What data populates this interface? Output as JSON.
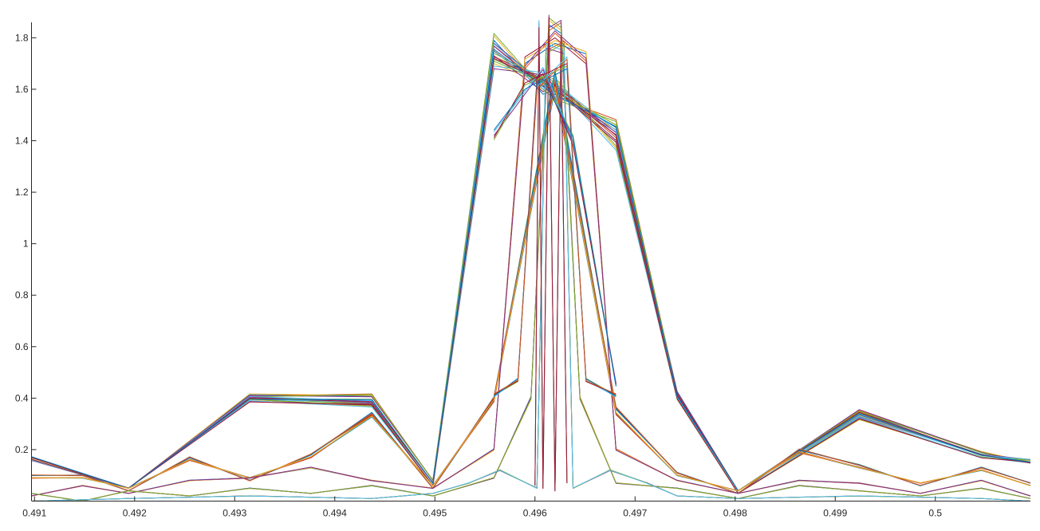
{
  "chart_data": {
    "type": "line",
    "title": "",
    "xlabel": "",
    "ylabel": "",
    "xlim": [
      0.49097,
      0.50095
    ],
    "ylim": [
      0,
      1.86
    ],
    "grid": false,
    "legend": "none",
    "x_ticks": [
      0.491,
      0.492,
      0.493,
      0.494,
      0.495,
      0.496,
      0.497,
      0.498,
      0.499,
      0.5
    ],
    "x_tick_labels": [
      "0.491",
      "0.492",
      "0.493",
      "0.494",
      "0.495",
      "0.496",
      "0.497",
      "0.498",
      "0.499",
      "0.5"
    ],
    "y_ticks": [
      0.2,
      0.4,
      0.6,
      0.8,
      1.0,
      1.2,
      1.4,
      1.6,
      1.8
    ],
    "y_tick_labels": [
      "0.2",
      "0.4",
      "0.6",
      "0.8",
      "1",
      "1.2",
      "1.4",
      "1.6",
      "1.8"
    ],
    "series_colors": [
      "#0072BD",
      "#D95319",
      "#EDB120",
      "#7E2F8E",
      "#77AC30",
      "#4DBEEE",
      "#A2142F"
    ],
    "series": [
      {
        "x": [
          0.49097,
          0.49194,
          0.49315,
          0.49437,
          0.49498,
          0.49559,
          0.49608,
          0.4962,
          0.49681,
          0.49742,
          0.49803,
          0.49924,
          0.50046,
          0.50095
        ],
        "values": [
          0.16,
          0.05,
          0.41,
          0.41,
          0.08,
          1.79,
          1.6,
          1.58,
          1.46,
          0.42,
          0.04,
          0.35,
          0.19,
          0.15
        ]
      },
      {
        "x": [
          0.49097,
          0.49194,
          0.49315,
          0.49437,
          0.49498,
          0.49559,
          0.49608,
          0.4962,
          0.49681,
          0.49742,
          0.49803,
          0.49924,
          0.50046,
          0.50095
        ],
        "values": [
          0.17,
          0.05,
          0.4,
          0.38,
          0.07,
          1.75,
          1.62,
          1.6,
          1.42,
          0.41,
          0.03,
          0.33,
          0.18,
          0.16
        ]
      },
      {
        "x": [
          0.49097,
          0.49194,
          0.49315,
          0.49437,
          0.49498,
          0.49559,
          0.49608,
          0.4962,
          0.49681,
          0.49742,
          0.49803,
          0.49924,
          0.50046,
          0.50095
        ],
        "values": [
          0.16,
          0.05,
          0.39,
          0.37,
          0.06,
          1.7,
          1.64,
          1.62,
          1.38,
          0.4,
          0.03,
          0.32,
          0.17,
          0.15
        ]
      },
      {
        "x": [
          0.49097,
          0.49194,
          0.49315,
          0.49437,
          0.49498,
          0.49559,
          0.49608,
          0.4962,
          0.49681,
          0.49742,
          0.49803,
          0.49924,
          0.50046,
          0.50095
        ],
        "values": [
          0.17,
          0.05,
          0.4,
          0.39,
          0.07,
          1.73,
          1.61,
          1.6,
          1.44,
          0.41,
          0.04,
          0.34,
          0.18,
          0.15
        ]
      },
      {
        "x": [
          0.49097,
          0.49148,
          0.49194,
          0.49255,
          0.49315,
          0.49376,
          0.49437,
          0.49498,
          0.49559,
          0.4962,
          0.49681,
          0.49742,
          0.49803,
          0.49864,
          0.49924,
          0.49985,
          0.50046,
          0.50095
        ],
        "values": [
          0.1,
          0.1,
          0.04,
          0.17,
          0.08,
          0.18,
          0.34,
          0.05,
          0.4,
          1.65,
          0.36,
          0.11,
          0.03,
          0.2,
          0.14,
          0.06,
          0.13,
          0.07
        ]
      },
      {
        "x": [
          0.49097,
          0.49148,
          0.49194,
          0.49255,
          0.49315,
          0.49376,
          0.49437,
          0.49498,
          0.49559,
          0.4962,
          0.49681,
          0.49742,
          0.49803,
          0.49864,
          0.49924,
          0.49985,
          0.50046,
          0.50095
        ],
        "values": [
          0.09,
          0.09,
          0.05,
          0.16,
          0.09,
          0.17,
          0.33,
          0.06,
          0.39,
          1.62,
          0.34,
          0.1,
          0.04,
          0.19,
          0.13,
          0.07,
          0.12,
          0.06
        ]
      },
      {
        "x": [
          0.49097,
          0.49148,
          0.49194,
          0.49255,
          0.49315,
          0.49376,
          0.49437,
          0.49498,
          0.49559,
          0.4959,
          0.4962,
          0.49651,
          0.49681,
          0.49742,
          0.49803,
          0.49864,
          0.49924,
          0.49985,
          0.50046,
          0.50095
        ],
        "values": [
          0.02,
          0.06,
          0.03,
          0.08,
          0.09,
          0.13,
          0.08,
          0.05,
          0.2,
          1.7,
          1.8,
          1.72,
          0.2,
          0.08,
          0.03,
          0.08,
          0.07,
          0.03,
          0.08,
          0.02
        ]
      },
      {
        "x": [
          0.49097,
          0.49148,
          0.49194,
          0.49255,
          0.49315,
          0.49376,
          0.49437,
          0.49498,
          0.49559,
          0.49596,
          0.49614,
          0.49626,
          0.49645,
          0.49681,
          0.49742,
          0.49803,
          0.49864,
          0.49924,
          0.49985,
          0.50046,
          0.50095
        ],
        "values": [
          0.03,
          0.0,
          0.04,
          0.02,
          0.05,
          0.03,
          0.06,
          0.02,
          0.09,
          0.4,
          1.85,
          1.84,
          0.4,
          0.07,
          0.05,
          0.01,
          0.06,
          0.04,
          0.02,
          0.05,
          0.01
        ]
      },
      {
        "x": [
          0.49097,
          0.49194,
          0.49315,
          0.49437,
          0.49498,
          0.49534,
          0.49565,
          0.49602,
          0.49611,
          0.49629,
          0.49638,
          0.49675,
          0.49712,
          0.49742,
          0.49803,
          0.49924,
          0.50046,
          0.50095
        ],
        "values": [
          0.0,
          0.01,
          0.02,
          0.01,
          0.03,
          0.07,
          0.12,
          0.05,
          1.76,
          1.76,
          0.05,
          0.12,
          0.07,
          0.02,
          0.01,
          0.02,
          0.01,
          0.0
        ]
      },
      {
        "x": [
          0.496,
          0.49604,
          0.49608,
          0.49614,
          0.4962,
          0.49626,
          0.49632
        ],
        "values": [
          0.06,
          1.84,
          0.05,
          1.86,
          0.04,
          1.78,
          0.07
        ]
      },
      {
        "x": [
          0.49559,
          0.4959,
          0.49608,
          0.49638,
          0.49681
        ],
        "values": [
          1.42,
          1.6,
          1.66,
          1.4,
          0.45
        ]
      },
      {
        "x": [
          0.49559,
          0.49583,
          0.49602,
          0.49632,
          0.49651,
          0.49681
        ],
        "values": [
          0.41,
          0.47,
          1.62,
          1.7,
          0.47,
          0.41
        ]
      }
    ]
  }
}
